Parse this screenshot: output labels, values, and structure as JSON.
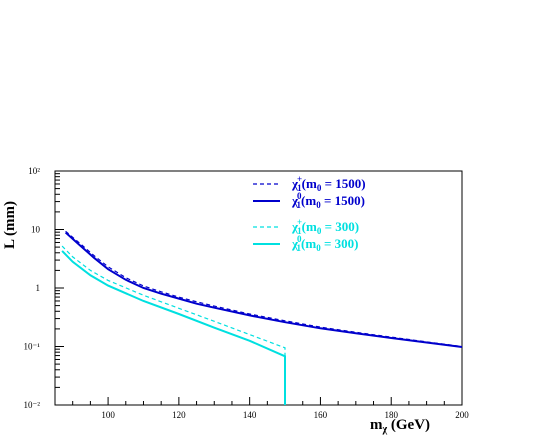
{
  "chart_data": {
    "type": "line",
    "title": "",
    "xlabel": "m_χ (GeV)",
    "ylabel": "L (mm)",
    "xlim": [
      85,
      200
    ],
    "ylim": [
      0.01,
      100
    ],
    "yscale": "log",
    "grid": false,
    "legend_position": "top-right",
    "x_ticks": [
      100,
      120,
      140,
      160,
      180,
      200
    ],
    "x_tick_labels": [
      "100",
      "120",
      "140",
      "160",
      "180",
      "200"
    ],
    "y_ticks": [
      0.01,
      0.1,
      1,
      10,
      100
    ],
    "y_tick_labels": [
      "10⁻²",
      "10⁻¹",
      "1",
      "10",
      "10²"
    ],
    "series": [
      {
        "name": "χ₁⁺(m₀ = 1500)",
        "color": "#0000cc",
        "style": "dashed",
        "x": [
          88,
          92,
          96,
          100,
          105,
          110,
          115,
          120,
          125,
          130,
          140,
          150,
          160,
          170,
          180,
          190,
          200
        ],
        "y": [
          9.3,
          5.8,
          3.6,
          2.3,
          1.5,
          1.08,
          0.86,
          0.7,
          0.58,
          0.49,
          0.36,
          0.275,
          0.215,
          0.175,
          0.145,
          0.12,
          0.1
        ]
      },
      {
        "name": "χ₁⁰(m₀ = 1500)",
        "color": "#0000cc",
        "style": "solid",
        "x": [
          88,
          92,
          96,
          100,
          105,
          110,
          115,
          120,
          125,
          130,
          140,
          150,
          160,
          170,
          180,
          190,
          200
        ],
        "y": [
          8.9,
          5.4,
          3.3,
          2.1,
          1.38,
          1.0,
          0.8,
          0.66,
          0.54,
          0.46,
          0.34,
          0.26,
          0.205,
          0.168,
          0.14,
          0.117,
          0.098
        ]
      },
      {
        "name": "χ₁⁺(m₀ = 300)",
        "color": "#00e0e0",
        "style": "dashed",
        "x": [
          87,
          90,
          95,
          100,
          110,
          120,
          130,
          140,
          150,
          150
        ],
        "y": [
          5.2,
          3.4,
          2.0,
          1.35,
          0.75,
          0.45,
          0.27,
          0.16,
          0.095,
          0.01
        ]
      },
      {
        "name": "χ₁⁰(m₀ = 300)",
        "color": "#00e0e0",
        "style": "solid",
        "x": [
          87,
          90,
          95,
          100,
          110,
          120,
          130,
          140,
          150,
          150
        ],
        "y": [
          4.3,
          2.8,
          1.65,
          1.1,
          0.6,
          0.36,
          0.21,
          0.125,
          0.068,
          0.01
        ]
      }
    ]
  },
  "legend": {
    "entries": [
      {
        "chi_sup": "+",
        "chi_sub": "1",
        "text": "(m",
        "m_sub": "0",
        "text2": " = 1500)"
      },
      {
        "chi_sup": "0",
        "chi_sub": "1",
        "text": "(m",
        "m_sub": "0",
        "text2": " = 1500)"
      },
      {
        "chi_sup": "+",
        "chi_sub": "1",
        "text": "(m",
        "m_sub": "0",
        "text2": " = 300)"
      },
      {
        "chi_sup": "0",
        "chi_sub": "1",
        "text": "(m",
        "m_sub": "0",
        "text2": " = 300)"
      }
    ]
  },
  "axis_labels": {
    "x_main": "m",
    "x_sub": "χ",
    "x_unit": " (GeV)",
    "y_main": "L (mm)"
  }
}
